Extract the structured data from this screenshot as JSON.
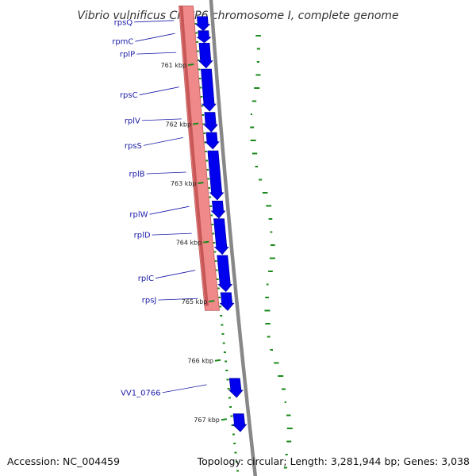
{
  "title": "Vibrio vulnificus CMCP6 chromosome I, complete genome",
  "accession": "Accession: NC_004459",
  "summary": "Topology: circular; Length: 3,281,944 bp; Genes: 3,038",
  "colors": {
    "backbone": "#888888",
    "forward_gene": "#0000ee",
    "reverse_gene": "#f08a8a",
    "gc_tick": "#1a8a1a",
    "label": "#1a1aaa"
  },
  "genes": [
    {
      "label": "rpsQ",
      "kb_start": 760.18,
      "kb_end": 760.42,
      "strand": "+"
    },
    {
      "label": "rpmC",
      "kb_start": 760.42,
      "kb_end": 760.62,
      "strand": "+"
    },
    {
      "label": "rplP",
      "kb_start": 760.63,
      "kb_end": 761.05,
      "strand": "+"
    },
    {
      "label": "rpsC",
      "kb_start": 761.07,
      "kb_end": 761.78,
      "strand": "+"
    },
    {
      "label": "rplV",
      "kb_start": 761.8,
      "kb_end": 762.13,
      "strand": "+"
    },
    {
      "label": "rpsS",
      "kb_start": 762.14,
      "kb_end": 762.42,
      "strand": "+"
    },
    {
      "label": "rplB",
      "kb_start": 762.45,
      "kb_end": 763.28,
      "strand": "+"
    },
    {
      "label": "rplW",
      "kb_start": 763.3,
      "kb_end": 763.59,
      "strand": "+"
    },
    {
      "label": "rplD",
      "kb_start": 763.6,
      "kb_end": 764.2,
      "strand": "+"
    },
    {
      "label": "rplC",
      "kb_start": 764.22,
      "kb_end": 764.83,
      "strand": "+"
    },
    {
      "label": "rpsJ",
      "kb_start": 764.85,
      "kb_end": 765.15,
      "strand": "+"
    },
    {
      "label": "VV1_0766",
      "kb_start": 766.3,
      "kb_end": 766.62,
      "strand": "+"
    },
    {
      "label": "",
      "kb_start": 766.9,
      "kb_end": 767.2,
      "strand": "+"
    }
  ],
  "reverse_block": {
    "kb_start": 760.0,
    "kb_end": 765.15
  },
  "kbp_ticks": [
    {
      "kb": 761,
      "label": "761 kbp"
    },
    {
      "kb": 762,
      "label": "762 kbp"
    },
    {
      "kb": 763,
      "label": "763 kbp"
    },
    {
      "kb": 764,
      "label": "764 kbp"
    },
    {
      "kb": 765,
      "label": "765 kbp"
    },
    {
      "kb": 766,
      "label": "766 kbp"
    },
    {
      "kb": 767,
      "label": "767 kbp"
    }
  ]
}
